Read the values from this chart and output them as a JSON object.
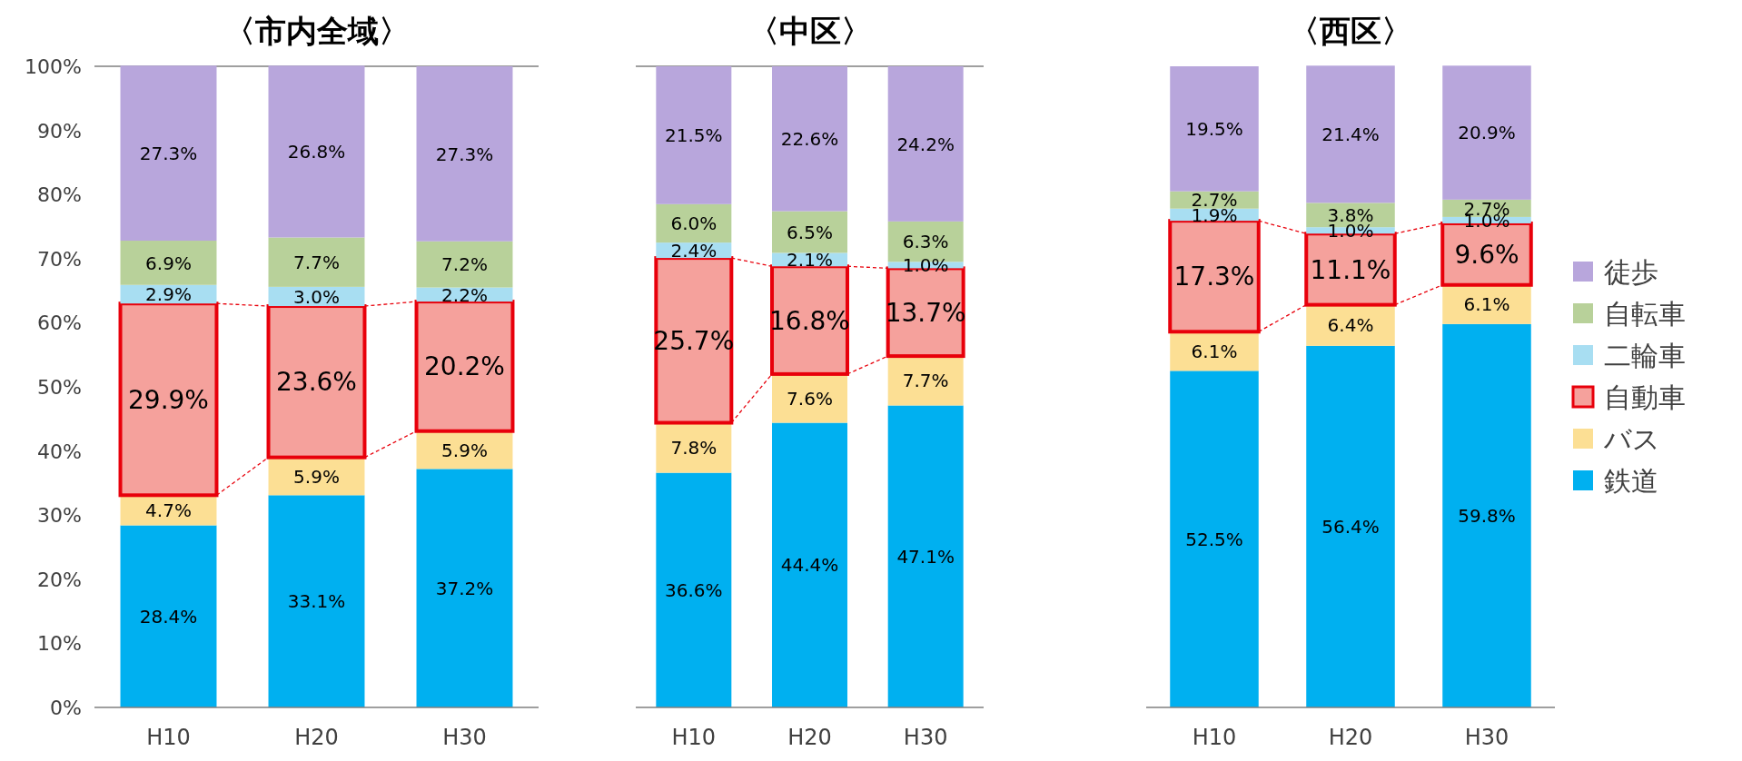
{
  "chart_data": [
    {
      "type": "bar",
      "title": "〈市内全域〉",
      "categories": [
        "H10",
        "H20",
        "H30"
      ],
      "stacked": true,
      "ylim": [
        0,
        100
      ],
      "yticks": [
        {
          "value": 0,
          "label": "0%"
        },
        {
          "value": 10,
          "label": "10%"
        },
        {
          "value": 20,
          "label": "20%"
        },
        {
          "value": 30,
          "label": "30%"
        },
        {
          "value": 40,
          "label": "40%"
        },
        {
          "value": 50,
          "label": "50%"
        },
        {
          "value": 60,
          "label": "60%"
        },
        {
          "value": 70,
          "label": "70%"
        },
        {
          "value": 80,
          "label": "80%"
        },
        {
          "value": 90,
          "label": "90%"
        },
        {
          "value": 100,
          "label": "100%"
        }
      ],
      "ref_lines": [
        {
          "axis": "y",
          "value": 100,
          "color": "#7f7f7f"
        }
      ],
      "series": [
        {
          "color": "#00b0f0",
          "values": [
            28.4,
            33.1,
            37.2
          ],
          "value_labels": [
            "28.4%",
            "33.1%",
            "37.2%"
          ]
        },
        {
          "color": "#fcdf94",
          "values": [
            4.7,
            5.9,
            5.9
          ],
          "value_labels": [
            "4.7%",
            "5.9%",
            "5.9%"
          ]
        },
        {
          "color": "#f5a19c",
          "values": [
            29.9,
            23.6,
            20.2
          ],
          "value_labels": [
            "29.9%",
            "23.6%",
            "20.2%"
          ],
          "line_style": "solid"
        },
        {
          "color": "#a8def2",
          "values": [
            2.9,
            3.0,
            2.2
          ],
          "value_labels": [
            "2.9%",
            "3.0%",
            "2.2%"
          ]
        },
        {
          "color": "#b8d19a",
          "values": [
            6.9,
            7.7,
            7.2
          ],
          "value_labels": [
            "6.9%",
            "7.7%",
            "7.2%"
          ]
        },
        {
          "color": "#b8a6dc",
          "values": [
            27.3,
            26.8,
            27.3
          ],
          "value_labels": [
            "27.3%",
            "26.8%",
            "27.3%"
          ]
        }
      ]
    },
    {
      "type": "bar",
      "title": "〈中区〉",
      "categories": [
        "H10",
        "H20",
        "H30"
      ],
      "stacked": true,
      "ylim": [
        0,
        100
      ],
      "tick_labels": "x",
      "ref_lines": [
        {
          "axis": "y",
          "value": 100,
          "color": "#7f7f7f"
        }
      ],
      "series": [
        {
          "color": "#00b0f0",
          "values": [
            36.6,
            44.4,
            47.1
          ],
          "value_labels": [
            "36.6%",
            "44.4%",
            "47.1%"
          ]
        },
        {
          "color": "#fcdf94",
          "values": [
            7.8,
            7.6,
            7.7
          ],
          "value_labels": [
            "7.8%",
            "7.6%",
            "7.7%"
          ]
        },
        {
          "color": "#f5a19c",
          "values": [
            25.7,
            16.8,
            13.7
          ],
          "value_labels": [
            "25.7%",
            "16.8%",
            "13.7%"
          ],
          "line_style": "solid"
        },
        {
          "color": "#a8def2",
          "values": [
            2.4,
            2.1,
            1.0
          ],
          "value_labels": [
            "2.4%",
            "2.1%",
            "1.0%"
          ]
        },
        {
          "color": "#b8d19a",
          "values": [
            6.0,
            6.5,
            6.3
          ],
          "value_labels": [
            "6.0%",
            "6.5%",
            "6.3%"
          ]
        },
        {
          "color": "#b8a6dc",
          "values": [
            21.5,
            22.6,
            24.2
          ],
          "value_labels": [
            "21.5%",
            "22.6%",
            "24.2%"
          ]
        }
      ]
    },
    {
      "type": "bar",
      "title": "〈西区〉",
      "categories": [
        "H10",
        "H20",
        "H30"
      ],
      "stacked": true,
      "ylim": [
        0,
        100
      ],
      "tick_labels": "x",
      "legend": "right",
      "series": [
        {
          "name": "鉄道",
          "color": "#00b0f0",
          "values": [
            52.5,
            56.4,
            59.8
          ],
          "value_labels": [
            "52.5%",
            "56.4%",
            "59.8%"
          ]
        },
        {
          "name": "バス",
          "color": "#fcdf94",
          "values": [
            6.1,
            6.4,
            6.1
          ],
          "value_labels": [
            "6.1%",
            "6.4%",
            "6.1%"
          ]
        },
        {
          "name": "自動車",
          "color": "#f5a19c",
          "values": [
            17.3,
            11.1,
            9.6
          ],
          "value_labels": [
            "17.3%",
            "11.1%",
            "9.6%"
          ],
          "line_style": "solid"
        },
        {
          "name": "二輪車",
          "color": "#a8def2",
          "values": [
            1.9,
            1.0,
            1.0
          ],
          "value_labels": [
            "1.9%",
            "1.0%",
            "1.0%"
          ]
        },
        {
          "name": "自転車",
          "color": "#b8d19a",
          "values": [
            2.7,
            3.8,
            2.7
          ],
          "value_labels": [
            "2.7%",
            "3.8%",
            "2.7%"
          ]
        },
        {
          "name": "徒歩",
          "color": "#b8a6dc",
          "values": [
            19.5,
            21.4,
            20.9
          ],
          "value_labels": [
            "19.5%",
            "21.4%",
            "20.9%"
          ]
        }
      ]
    }
  ]
}
